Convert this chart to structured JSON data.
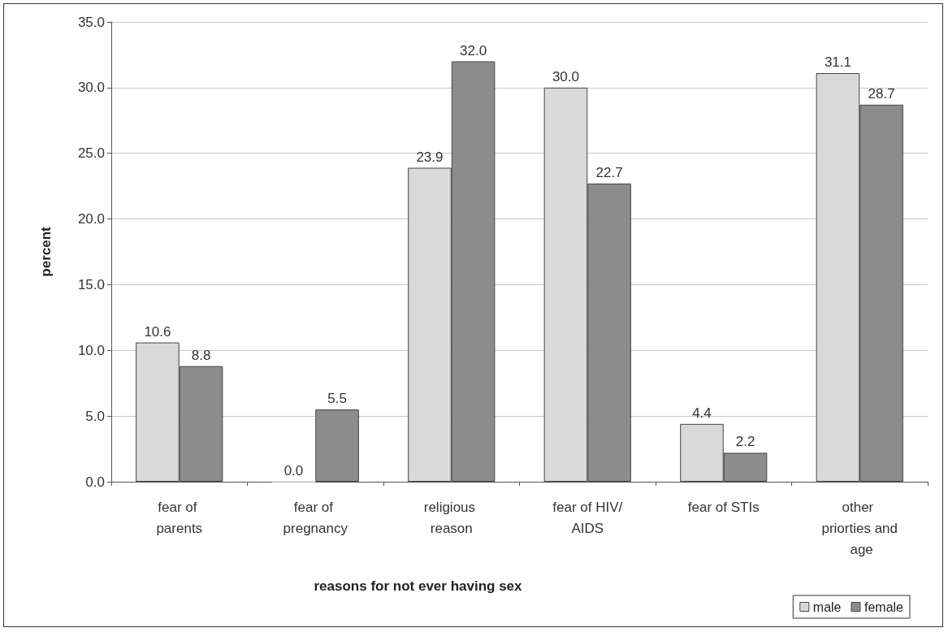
{
  "chart_data": {
    "type": "bar",
    "xlabel": "reasons for not ever having sex",
    "ylabel": "percent",
    "categories": [
      "fear of parents",
      "fear of pregnancy",
      "religious reason",
      "fear of HIV/AIDS",
      "fear of STIs",
      "other priorties and age"
    ],
    "series": [
      {
        "name": "male",
        "color": "#d9d9d9",
        "values": [
          10.6,
          0.0,
          23.9,
          30.0,
          4.4,
          31.1
        ],
        "value_labels": [
          "10.6",
          "0.0",
          "23.9",
          "30.0",
          "4.4",
          "31.1"
        ]
      },
      {
        "name": "female",
        "color": "#8c8c8c",
        "values": [
          8.8,
          5.5,
          32.0,
          22.7,
          2.2,
          28.7
        ],
        "value_labels": [
          "8.8",
          "5.5",
          "32.0",
          "22.7",
          "2.2",
          "28.7"
        ]
      }
    ],
    "ylim": [
      0,
      35
    ],
    "yticks": [
      {
        "value": 0,
        "label": "0.0"
      },
      {
        "value": 5,
        "label": "5.0"
      },
      {
        "value": 10,
        "label": "10.0"
      },
      {
        "value": 15,
        "label": "15.0"
      },
      {
        "value": 20,
        "label": "20.0"
      },
      {
        "value": 25,
        "label": "25.0"
      },
      {
        "value": 30,
        "label": "30.0"
      },
      {
        "value": 35,
        "label": "35.0"
      }
    ],
    "grid": "y",
    "legend": "bottom right"
  }
}
